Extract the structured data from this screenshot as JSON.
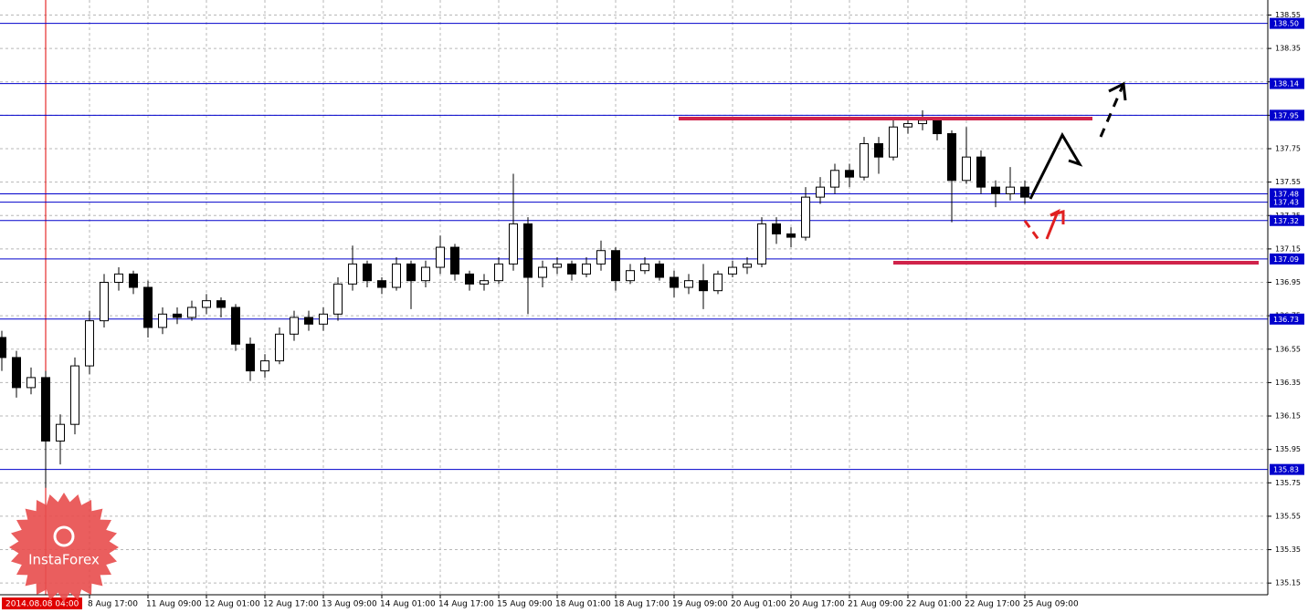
{
  "chart_data": {
    "type": "candlestick",
    "categories": [
      null,
      null,
      null,
      "2014.08.08 04:00",
      null,
      null,
      "8 Aug 17:00",
      null,
      null,
      null,
      "11 Aug 09:00",
      null,
      null,
      null,
      "12 Aug 01:00",
      null,
      null,
      null,
      "12 Aug 17:00",
      null,
      null,
      null,
      "13 Aug 09:00",
      null,
      null,
      null,
      "14 Aug 01:00",
      null,
      null,
      null,
      "14 Aug 17:00",
      null,
      null,
      null,
      "15 Aug 09:00",
      null,
      null,
      null,
      "18 Aug 01:00",
      null,
      null,
      null,
      "18 Aug 17:00",
      null,
      null,
      null,
      "19 Aug 09:00",
      null,
      null,
      null,
      "20 Aug 01:00",
      null,
      null,
      null,
      "20 Aug 17:00",
      null,
      null,
      null,
      "21 Aug 09:00",
      null,
      null,
      null,
      "22 Aug 01:00",
      null,
      null,
      null,
      "22 Aug 17:00",
      null,
      null,
      null,
      "25 Aug 09:00"
    ],
    "cursor": "2014.08.08 04:00",
    "open": [
      136.62,
      136.5,
      136.32,
      136.38,
      136.0,
      136.1,
      136.45,
      136.72,
      136.95,
      137.0,
      136.92,
      136.68,
      136.76,
      136.74,
      136.8,
      136.84,
      136.8,
      136.58,
      136.42,
      136.48,
      136.64,
      136.74,
      136.7,
      136.76,
      136.94,
      137.06,
      136.96,
      136.92,
      137.06,
      136.96,
      137.04,
      137.16,
      137.0,
      136.94,
      136.96,
      137.06,
      137.3,
      136.98,
      137.04,
      137.06,
      137.0,
      137.06,
      137.14,
      136.96,
      137.02,
      137.06,
      136.98,
      136.92,
      136.96,
      136.9,
      137.0,
      137.04,
      137.06,
      137.3,
      137.24,
      137.22,
      137.46,
      137.52,
      137.62,
      137.58,
      137.78,
      137.7,
      137.88,
      137.9,
      137.92,
      137.84,
      137.56,
      137.7,
      137.52,
      137.48,
      137.52
    ],
    "high": [
      136.66,
      136.54,
      136.44,
      136.42,
      136.16,
      136.5,
      136.78,
      137.0,
      137.04,
      137.02,
      136.96,
      136.8,
      136.8,
      136.84,
      136.88,
      136.86,
      136.82,
      136.62,
      136.52,
      136.68,
      136.78,
      136.78,
      136.8,
      136.98,
      137.17,
      137.08,
      136.98,
      137.1,
      137.08,
      137.08,
      137.23,
      137.18,
      137.02,
      137.0,
      137.1,
      137.6,
      137.34,
      137.08,
      137.1,
      137.08,
      137.1,
      137.2,
      137.16,
      137.06,
      137.1,
      137.08,
      137.02,
      137.0,
      137.06,
      137.02,
      137.08,
      137.1,
      137.34,
      137.34,
      137.28,
      137.52,
      137.58,
      137.66,
      137.66,
      137.82,
      137.82,
      137.92,
      137.94,
      137.98,
      137.94,
      137.86,
      137.88,
      137.74,
      137.56,
      137.64,
      137.56
    ],
    "low": [
      136.42,
      136.26,
      136.28,
      135.72,
      135.86,
      136.04,
      136.4,
      136.68,
      136.9,
      136.88,
      136.62,
      136.64,
      136.7,
      136.72,
      136.76,
      136.74,
      136.54,
      136.36,
      136.38,
      136.46,
      136.6,
      136.66,
      136.66,
      136.72,
      136.9,
      136.92,
      136.88,
      136.9,
      136.79,
      136.92,
      137.0,
      136.96,
      136.9,
      136.9,
      136.94,
      137.02,
      136.76,
      136.92,
      137.0,
      136.96,
      136.98,
      137.02,
      136.9,
      136.94,
      137.0,
      136.96,
      136.86,
      136.88,
      136.79,
      136.88,
      136.98,
      137.0,
      137.04,
      137.18,
      137.16,
      137.2,
      137.42,
      137.48,
      137.52,
      137.56,
      137.6,
      137.68,
      137.84,
      137.86,
      137.8,
      137.31,
      137.54,
      137.48,
      137.4,
      137.44,
      137.42
    ],
    "close": [
      136.5,
      136.32,
      136.38,
      136.0,
      136.1,
      136.45,
      136.72,
      136.95,
      137.0,
      136.92,
      136.68,
      136.76,
      136.74,
      136.8,
      136.84,
      136.8,
      136.58,
      136.42,
      136.48,
      136.64,
      136.74,
      136.7,
      136.76,
      136.94,
      137.06,
      136.96,
      136.92,
      137.06,
      136.96,
      137.04,
      137.16,
      137.0,
      136.94,
      136.96,
      137.06,
      137.3,
      136.98,
      137.04,
      137.06,
      137.0,
      137.06,
      137.14,
      136.96,
      137.02,
      137.06,
      136.98,
      136.92,
      136.96,
      136.9,
      137.0,
      137.04,
      137.06,
      137.3,
      137.24,
      137.22,
      137.46,
      137.52,
      137.62,
      137.58,
      137.78,
      137.7,
      137.88,
      137.9,
      137.92,
      137.84,
      137.56,
      137.7,
      137.52,
      137.48,
      137.52,
      137.46
    ],
    "ylim": [
      135.08,
      138.64
    ],
    "yticks": [
      135.15,
      135.35,
      135.55,
      135.75,
      135.95,
      136.15,
      136.35,
      136.55,
      136.75,
      136.95,
      137.15,
      137.35,
      137.55,
      137.75,
      137.95,
      138.15,
      138.35,
      138.55
    ],
    "levels": [
      {
        "value": 138.5,
        "label": "138.50"
      },
      138.14,
      137.95,
      137.48,
      137.43,
      137.32,
      137.09,
      136.73,
      135.83
    ],
    "level_color": "#0000cc",
    "grid": true,
    "watermark": "InstaForex"
  }
}
